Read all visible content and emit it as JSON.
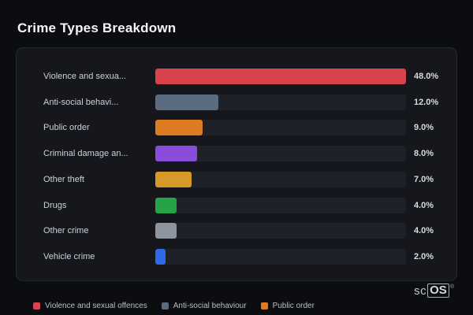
{
  "title": "Crime Types Breakdown",
  "chart_data": {
    "type": "bar",
    "orientation": "horizontal",
    "title": "Crime Types Breakdown",
    "xlim": [
      0,
      48
    ],
    "grid": false,
    "legend_position": "bottom-left",
    "categories": [
      "Violence and sexua...",
      "Anti-social behavi...",
      "Public order",
      "Criminal damage an...",
      "Other theft",
      "Drugs",
      "Other crime",
      "Vehicle crime"
    ],
    "values": [
      48.0,
      12.0,
      9.0,
      8.0,
      7.0,
      4.0,
      4.0,
      2.0
    ],
    "value_labels": [
      "48.0%",
      "12.0%",
      "9.0%",
      "8.0%",
      "7.0%",
      "4.0%",
      "4.0%",
      "2.0%"
    ],
    "colors": [
      "#d8434e",
      "#5b6b80",
      "#dd7b22",
      "#8a4ddb",
      "#d79a28",
      "#27a347",
      "#8e949e",
      "#2f6be6"
    ]
  },
  "legend": [
    {
      "label": "Violence and sexual offences",
      "color": "#d8434e"
    },
    {
      "label": "Anti-social behaviour",
      "color": "#5b6b80"
    },
    {
      "label": "Public order",
      "color": "#dd7b22"
    }
  ],
  "logo": {
    "prefix": "sc",
    "box": "OS",
    "registered": "®"
  },
  "colors": {
    "background": "#0c0d11",
    "panel": "#15171d",
    "panel_border": "#23262e",
    "track": "#1e2128",
    "title_text": "#f4f5f7",
    "label_text": "#cdd1d7",
    "value_text": "#d8dbe0",
    "legend_text": "#b9bec6"
  }
}
